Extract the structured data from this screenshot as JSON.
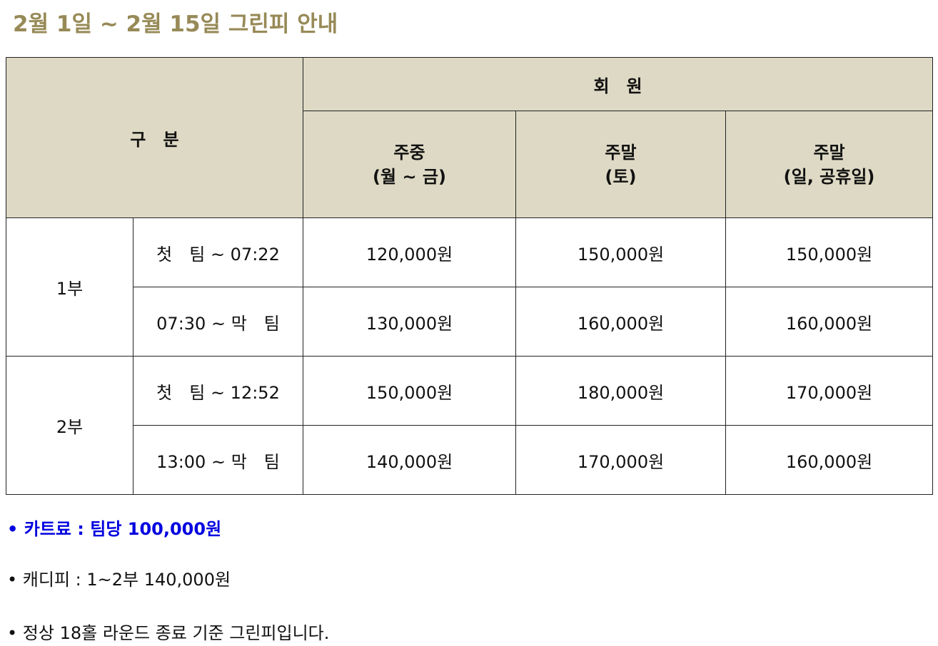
{
  "title": "2월 1일 ~ 2월 15일 그린피 안내",
  "colors": {
    "title": "#978a57",
    "header_bg": "#ddd9c4",
    "cart_note": "#0000e0"
  },
  "table": {
    "category_header": "구　분",
    "member_header": "회　원",
    "columns": [
      {
        "line1": "주중",
        "line2": "(월 ~ 금)"
      },
      {
        "line1": "주말",
        "line2": "(토)"
      },
      {
        "line1": "주말",
        "line2": "(일, 공휴일)"
      }
    ],
    "groups": [
      {
        "label": "1부",
        "rows": [
          {
            "time": "첫　팀 ~ 07:22",
            "prices": [
              "120,000원",
              "150,000원",
              "150,000원"
            ]
          },
          {
            "time": "07:30 ~ 막　팀",
            "prices": [
              "130,000원",
              "160,000원",
              "160,000원"
            ]
          }
        ]
      },
      {
        "label": "2부",
        "rows": [
          {
            "time": "첫　팀 ~ 12:52",
            "prices": [
              "150,000원",
              "180,000원",
              "170,000원"
            ]
          },
          {
            "time": "13:00 ~ 막　팀",
            "prices": [
              "140,000원",
              "170,000원",
              "160,000원"
            ]
          }
        ]
      }
    ]
  },
  "notes": [
    "• 카트료 : 팀당 100,000원",
    "• 캐디피 : 1~2부 140,000원",
    "• 정상 18홀 라운드 종료 기준 그린피입니다."
  ]
}
